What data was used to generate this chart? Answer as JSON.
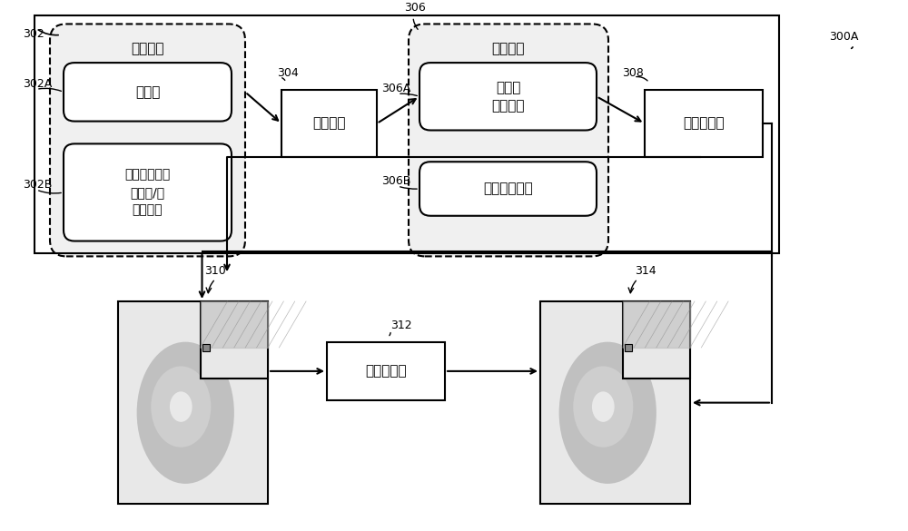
{
  "bg_color": "#ffffff",
  "line_color": "#000000",
  "box_fill": "#ffffff",
  "label_302": "302",
  "label_302A": "302A",
  "label_302B": "302B",
  "label_304": "304",
  "label_306": "306",
  "label_306A": "306A",
  "label_306B": "306B",
  "label_308": "308",
  "label_300A": "300A",
  "label_310": "310",
  "label_312": "312",
  "label_314": "314",
  "text_3d_mesh": "三维网格",
  "text_polygon": "多边形",
  "text_texture": "相关联的纹理\n数据和/或\n着色数据",
  "text_rasterizer": "光栅化器",
  "text_3d_raster": "三维光栅",
  "text_pixel": "像素和\n像素坐标",
  "text_poly_id": "多边形标识符",
  "text_color_det": "颜色确定器",
  "text_splat_fab": "喷溅构造器"
}
